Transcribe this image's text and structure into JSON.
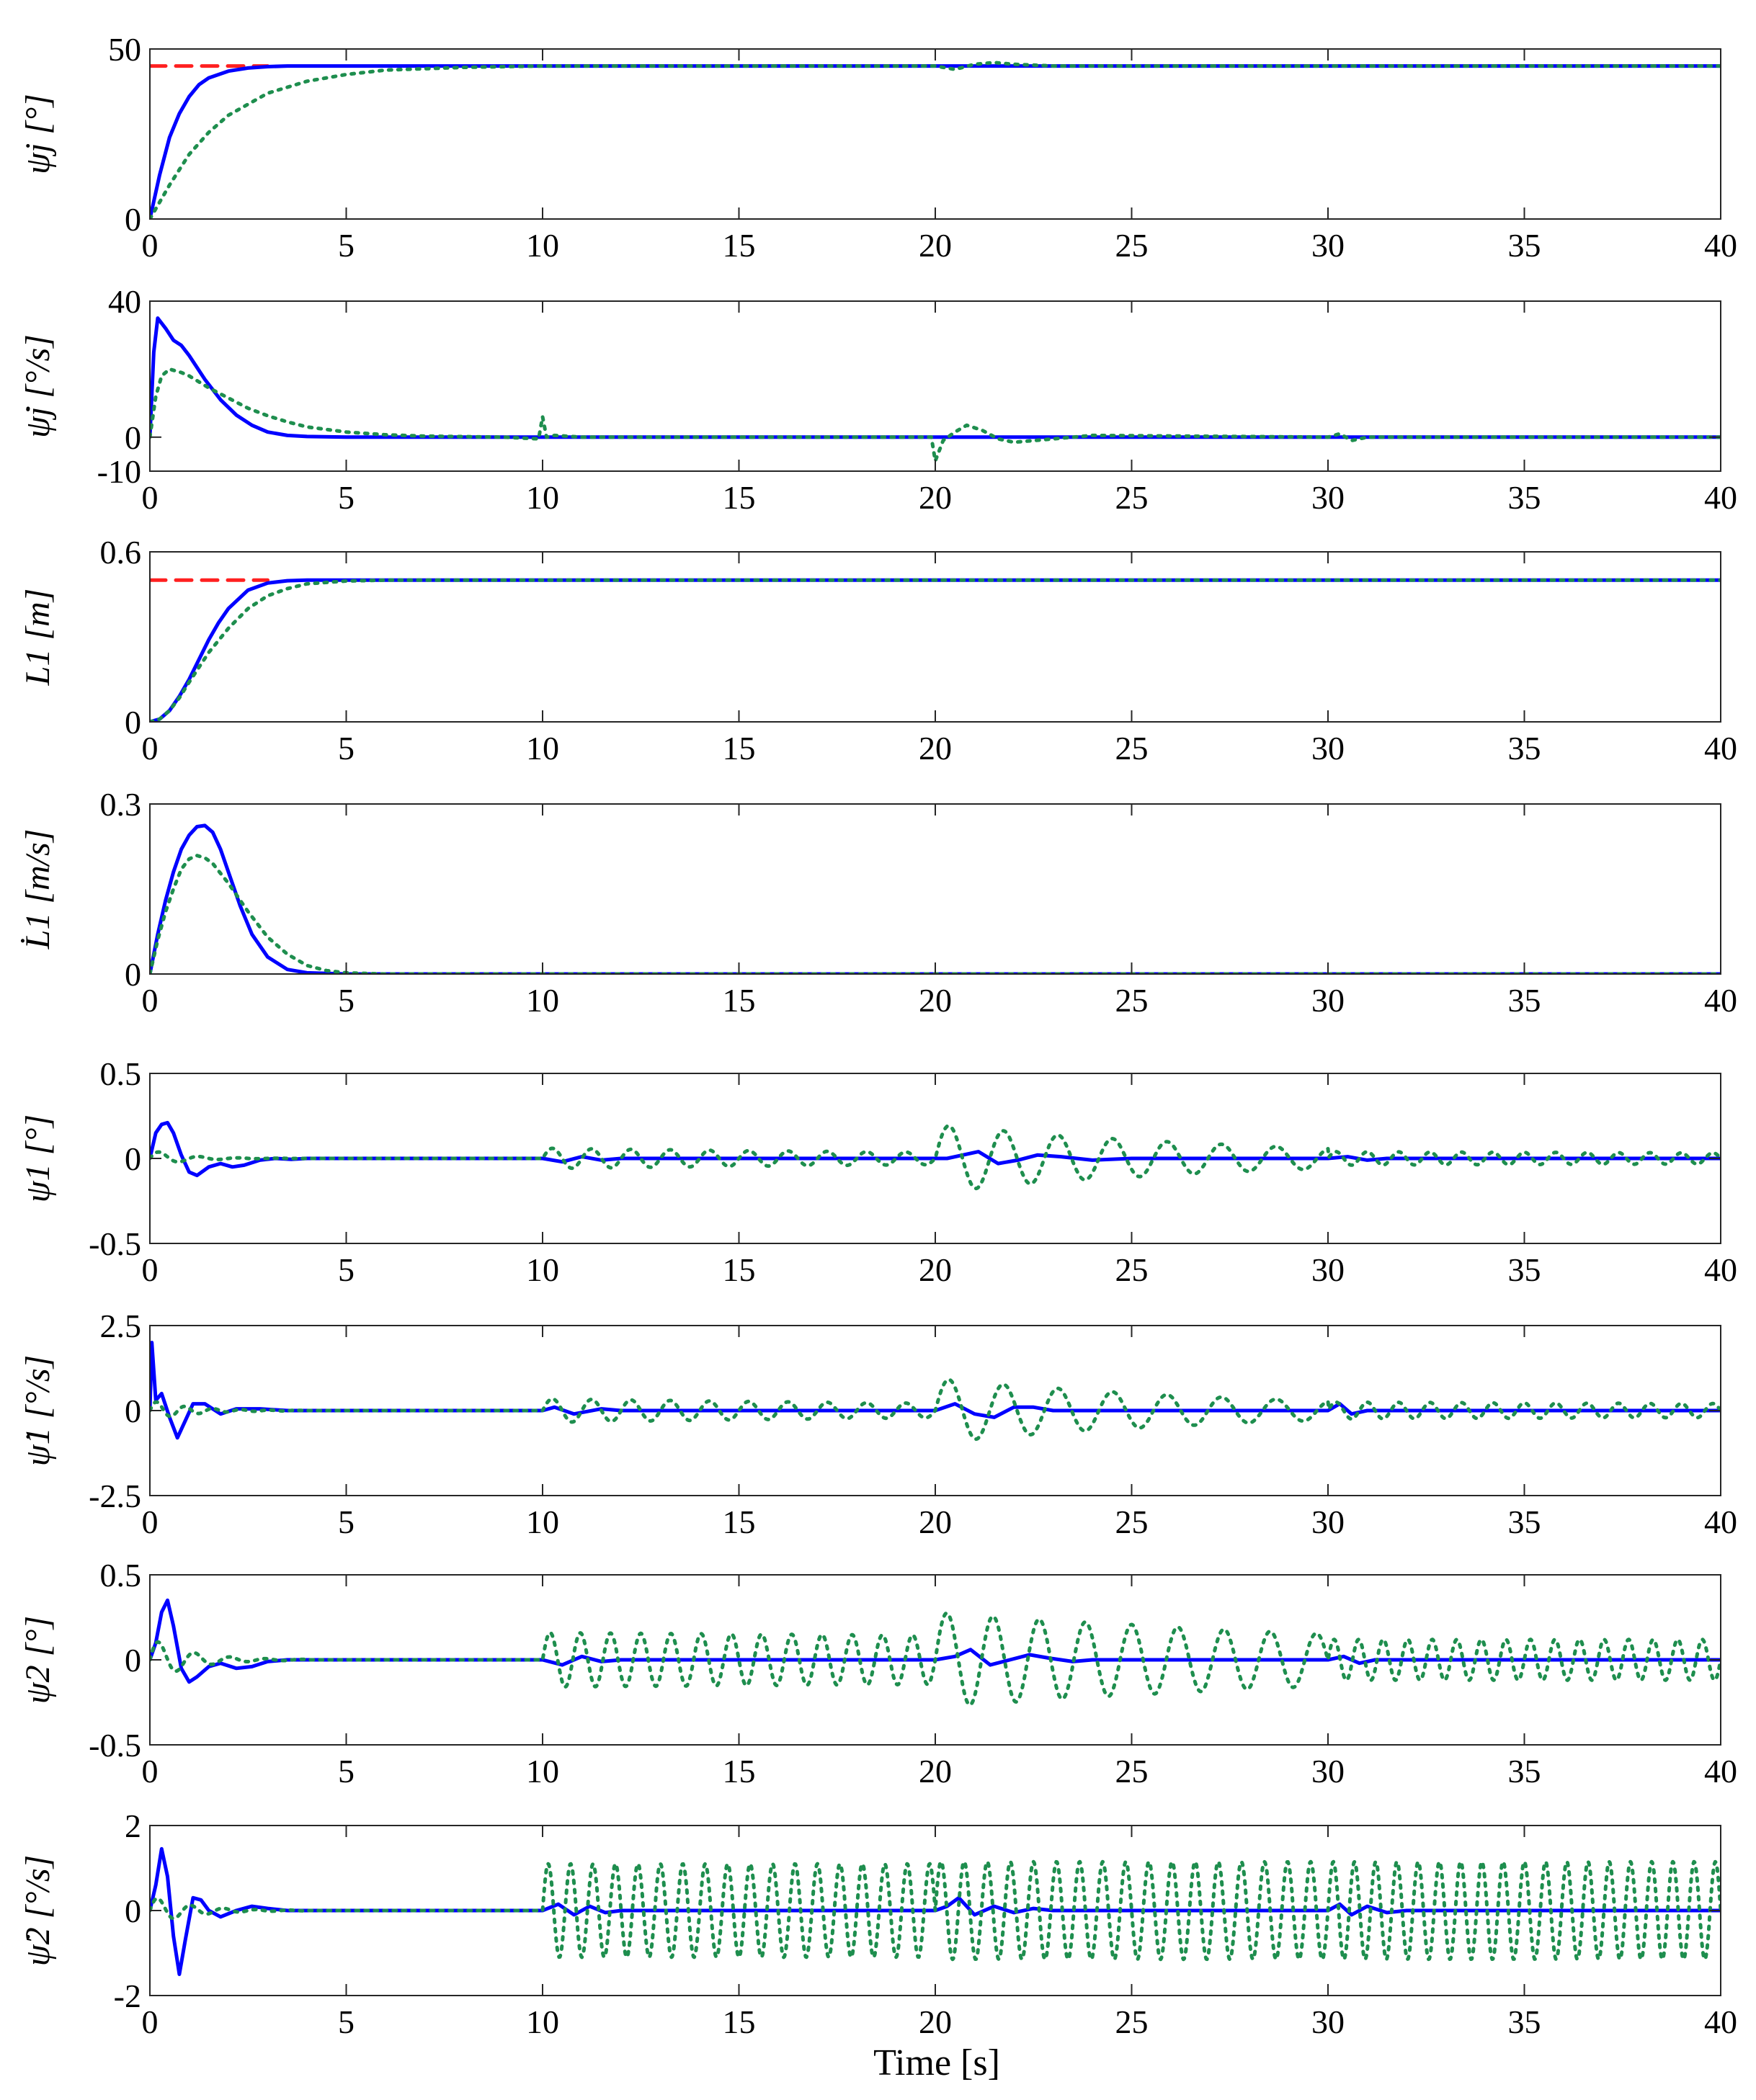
{
  "figure": {
    "xlabel": "Time [s]",
    "xlim": [
      0,
      40
    ],
    "xticks": [
      0,
      5,
      10,
      15,
      20,
      25,
      30,
      35,
      40
    ],
    "colors": {
      "blue_solid": "#0000ff",
      "green_dotted": "#1e8e4e",
      "red_dashed": "#ff2020"
    }
  },
  "chart_data": [
    {
      "type": "line",
      "ylabel": "ψj [°]",
      "ylim": [
        0,
        50
      ],
      "yticks": [
        0,
        50
      ],
      "ytick_labels": [
        "0",
        "50"
      ],
      "series": [
        {
          "style": "dashed-red",
          "x": [
            0,
            3
          ],
          "y": [
            45,
            45
          ]
        },
        {
          "style": "solid-blue",
          "x": [
            0,
            0.25,
            0.5,
            0.75,
            1,
            1.25,
            1.5,
            2,
            2.5,
            3,
            3.5,
            4,
            10,
            20,
            30,
            40
          ],
          "y": [
            0,
            13,
            24,
            31,
            36,
            39.5,
            41.5,
            43.5,
            44.4,
            44.8,
            45,
            45,
            45,
            45,
            45,
            45
          ]
        },
        {
          "style": "dotted-green",
          "x": [
            0,
            0.5,
            1,
            1.5,
            2,
            3,
            4,
            5,
            6,
            8,
            10,
            20,
            20.5,
            21,
            21.5,
            22,
            23,
            30,
            40
          ],
          "y": [
            0,
            10,
            19,
            25.5,
            30.5,
            37,
            40.5,
            42.5,
            43.8,
            44.6,
            45,
            45,
            44,
            45.5,
            46,
            45.5,
            45,
            45,
            45
          ]
        }
      ]
    },
    {
      "type": "line",
      "ylabel": "ψ̇j [°/s]",
      "ylim": [
        -10,
        40
      ],
      "yticks": [
        -10,
        0,
        40
      ],
      "ytick_labels": [
        "-10",
        "0",
        "40"
      ],
      "series": [
        {
          "style": "solid-blue",
          "x": [
            0,
            0.1,
            0.2,
            0.4,
            0.6,
            0.8,
            1,
            1.4,
            1.8,
            2.2,
            2.6,
            3,
            3.5,
            4,
            5,
            10,
            20,
            30,
            40
          ],
          "y": [
            0,
            25,
            35,
            32,
            28.5,
            27,
            24,
            17,
            11,
            6.5,
            3.5,
            1.5,
            0.5,
            0.2,
            0,
            0,
            0,
            0,
            0
          ]
        },
        {
          "style": "dotted-green",
          "x": [
            0,
            0.15,
            0.3,
            0.5,
            0.8,
            1,
            1.5,
            2,
            2.5,
            3,
            3.5,
            4,
            5,
            6,
            7,
            9,
            9.9,
            10,
            10.1,
            10.3,
            11,
            19.9,
            20,
            20.2,
            20.5,
            20.8,
            21.2,
            21.6,
            22,
            23,
            24,
            30,
            30.3,
            30.6,
            31,
            40
          ],
          "y": [
            0,
            12,
            18,
            20,
            19,
            18,
            14.5,
            11.5,
            8.5,
            6.3,
            4.5,
            3,
            1.5,
            0.7,
            0.3,
            0,
            -0.5,
            6,
            0,
            0.5,
            0,
            0,
            -7,
            -1,
            1.5,
            3.5,
            2,
            -0.5,
            -1.5,
            -0.5,
            0.5,
            0,
            1,
            -1,
            0,
            0
          ]
        }
      ]
    },
    {
      "type": "line",
      "ylabel": "L1 [m]",
      "ylim": [
        0,
        0.6
      ],
      "yticks": [
        0,
        0.6
      ],
      "ytick_labels": [
        "0",
        "0.6"
      ],
      "series": [
        {
          "style": "dashed-red",
          "x": [
            0,
            3
          ],
          "y": [
            0.5,
            0.5
          ]
        },
        {
          "style": "solid-blue",
          "x": [
            0,
            0.25,
            0.5,
            0.75,
            1,
            1.25,
            1.5,
            1.75,
            2,
            2.5,
            3,
            3.5,
            4,
            5,
            40
          ],
          "y": [
            0,
            0.01,
            0.04,
            0.09,
            0.15,
            0.22,
            0.29,
            0.35,
            0.4,
            0.465,
            0.49,
            0.498,
            0.5,
            0.5,
            0.5
          ]
        },
        {
          "style": "dotted-green",
          "x": [
            0,
            0.25,
            0.5,
            0.75,
            1,
            1.5,
            2,
            2.5,
            3,
            3.5,
            4,
            5,
            6,
            40
          ],
          "y": [
            0,
            0.01,
            0.04,
            0.085,
            0.14,
            0.245,
            0.33,
            0.4,
            0.445,
            0.47,
            0.487,
            0.497,
            0.5,
            0.5
          ]
        }
      ]
    },
    {
      "type": "line",
      "ylabel": "L̇1 [m/s]",
      "ylim": [
        0,
        0.3
      ],
      "yticks": [
        0,
        0.3
      ],
      "ytick_labels": [
        "0",
        "0.3"
      ],
      "series": [
        {
          "style": "solid-blue",
          "x": [
            0,
            0.2,
            0.4,
            0.6,
            0.8,
            1,
            1.2,
            1.4,
            1.6,
            1.8,
            2,
            2.3,
            2.6,
            3,
            3.5,
            4,
            5,
            40
          ],
          "y": [
            0,
            0.07,
            0.13,
            0.18,
            0.22,
            0.245,
            0.26,
            0.262,
            0.25,
            0.22,
            0.18,
            0.12,
            0.07,
            0.03,
            0.008,
            0.002,
            0,
            0
          ]
        },
        {
          "style": "dotted-green",
          "x": [
            0,
            0.2,
            0.4,
            0.6,
            0.8,
            1,
            1.2,
            1.4,
            1.6,
            2,
            2.5,
            3,
            3.5,
            4,
            4.5,
            5,
            6,
            40
          ],
          "y": [
            0,
            0.06,
            0.11,
            0.15,
            0.185,
            0.203,
            0.209,
            0.205,
            0.195,
            0.16,
            0.11,
            0.065,
            0.035,
            0.015,
            0.006,
            0.002,
            0,
            0
          ]
        }
      ]
    },
    {
      "type": "line",
      "ylabel": "ψ1 [°]",
      "ylim": [
        -0.5,
        0.5
      ],
      "yticks": [
        -0.5,
        0,
        0.5
      ],
      "ytick_labels": [
        "-0.5",
        "0",
        "0.5"
      ],
      "series": [
        {
          "style": "solid-blue",
          "x": [
            0,
            0.15,
            0.3,
            0.45,
            0.6,
            0.8,
            1,
            1.2,
            1.5,
            1.8,
            2.1,
            2.4,
            2.8,
            3.2,
            3.6,
            4,
            10,
            10.5,
            11,
            11.5,
            12,
            19.8,
            20.3,
            20.7,
            21.1,
            21.6,
            22.1,
            22.6,
            23.2,
            24,
            25,
            30,
            30.5,
            31,
            31.5,
            32,
            40
          ],
          "y": [
            0,
            0.15,
            0.2,
            0.21,
            0.15,
            0.02,
            -0.08,
            -0.1,
            -0.05,
            -0.03,
            -0.05,
            -0.04,
            -0.01,
            0,
            -0.005,
            0,
            0,
            -0.02,
            0.01,
            -0.01,
            0,
            0,
            0,
            0.02,
            0.04,
            -0.03,
            -0.01,
            0.02,
            0.01,
            -0.01,
            0,
            0,
            0.01,
            -0.01,
            0,
            0,
            0
          ]
        },
        {
          "style": "dotted-green",
          "osc": [
            {
              "t0": 0,
              "t1": 4,
              "amp": 0.05,
              "freq": 1.0,
              "decay": 1.2
            },
            {
              "t0": 10,
              "t1": 20,
              "amp": 0.06,
              "freq": 1.0,
              "decay": 0.05
            },
            {
              "t0": 20,
              "t1": 30,
              "amp": 0.2,
              "freq": 0.72,
              "decay": 0.12
            },
            {
              "t0": 30,
              "t1": 40,
              "amp": 0.04,
              "freq": 1.25,
              "decay": 0.02
            }
          ]
        }
      ]
    },
    {
      "type": "line",
      "ylabel": "ψ̇1 [°/s]",
      "ylim": [
        -2.5,
        2.5
      ],
      "yticks": [
        -2.5,
        0,
        2.5
      ],
      "ytick_labels": [
        "-2.5",
        "0",
        "2.5"
      ],
      "series": [
        {
          "style": "solid-blue",
          "x": [
            0,
            0.05,
            0.15,
            0.3,
            0.5,
            0.7,
            0.9,
            1.1,
            1.4,
            1.8,
            2.2,
            2.8,
            3.5,
            10,
            10.3,
            10.8,
            11.5,
            12,
            20,
            20.5,
            21,
            21.5,
            22,
            22.5,
            23,
            30,
            30.3,
            30.6,
            31,
            40
          ],
          "y": [
            0,
            2.0,
            0.3,
            0.5,
            -0.2,
            -0.8,
            -0.3,
            0.2,
            0.2,
            -0.1,
            0.05,
            0.05,
            0,
            0,
            0.1,
            -0.1,
            0.05,
            0,
            0,
            0.2,
            -0.1,
            -0.2,
            0.1,
            0.1,
            0,
            0,
            0.2,
            -0.1,
            0,
            0
          ]
        },
        {
          "style": "dotted-green",
          "osc": [
            {
              "t0": 0,
              "t1": 4,
              "amp": 0.3,
              "freq": 1.4,
              "decay": 1.0
            },
            {
              "t0": 10,
              "t1": 20,
              "amp": 0.35,
              "freq": 1.0,
              "decay": 0.05
            },
            {
              "t0": 20,
              "t1": 30,
              "amp": 0.95,
              "freq": 0.72,
              "decay": 0.12
            },
            {
              "t0": 30,
              "t1": 40,
              "amp": 0.25,
              "freq": 1.25,
              "decay": 0.02
            }
          ]
        }
      ]
    },
    {
      "type": "line",
      "ylabel": "ψ2 [°]",
      "ylim": [
        -0.5,
        0.5
      ],
      "yticks": [
        -0.5,
        0,
        0.5
      ],
      "ytick_labels": [
        "-0.5",
        "0",
        "0.5"
      ],
      "series": [
        {
          "style": "solid-blue",
          "x": [
            0,
            0.15,
            0.3,
            0.45,
            0.6,
            0.8,
            1,
            1.2,
            1.5,
            1.8,
            2.2,
            2.6,
            3,
            3.5,
            4,
            10,
            10.5,
            11,
            11.5,
            12,
            20,
            20.5,
            20.9,
            21.4,
            21.9,
            22.4,
            22.9,
            23.5,
            24,
            30,
            30.4,
            30.8,
            31.2,
            40
          ],
          "y": [
            0,
            0.1,
            0.28,
            0.35,
            0.2,
            -0.05,
            -0.13,
            -0.1,
            -0.04,
            -0.02,
            -0.05,
            -0.04,
            -0.01,
            0,
            0,
            0,
            -0.03,
            0.02,
            -0.01,
            0,
            0,
            0.02,
            0.06,
            -0.03,
            0,
            0.03,
            0.01,
            -0.01,
            0,
            0,
            0.02,
            -0.02,
            0,
            0
          ]
        },
        {
          "style": "dotted-green",
          "osc": [
            {
              "t0": 0,
              "t1": 4,
              "amp": 0.13,
              "freq": 1.1,
              "decay": 1.0
            },
            {
              "t0": 10,
              "t1": 20,
              "amp": 0.16,
              "freq": 1.3,
              "decay": 0.01
            },
            {
              "t0": 20,
              "t1": 30,
              "amp": 0.28,
              "freq": 0.85,
              "decay": 0.06
            },
            {
              "t0": 30,
              "t1": 40,
              "amp": 0.12,
              "freq": 1.6,
              "decay": 0
            }
          ]
        }
      ]
    },
    {
      "type": "line",
      "ylabel": "ψ̇2 [°/s]",
      "ylim": [
        -2,
        2
      ],
      "yticks": [
        -2,
        0,
        2
      ],
      "ytick_labels": [
        "-2",
        "0",
        "2"
      ],
      "series": [
        {
          "style": "solid-blue",
          "x": [
            0,
            0.15,
            0.3,
            0.45,
            0.6,
            0.75,
            0.9,
            1.1,
            1.3,
            1.5,
            1.8,
            2.2,
            2.6,
            3,
            3.5,
            10,
            10.4,
            10.8,
            11.2,
            11.6,
            12,
            20,
            20.3,
            20.6,
            21,
            21.5,
            22,
            22.5,
            23,
            30,
            30.3,
            30.6,
            31,
            31.5,
            32,
            40
          ],
          "y": [
            0,
            0.6,
            1.45,
            0.8,
            -0.6,
            -1.5,
            -0.7,
            0.3,
            0.25,
            0,
            -0.15,
            0,
            0.1,
            0.05,
            0,
            0,
            0.15,
            -0.1,
            0.1,
            -0.05,
            0,
            0,
            0.1,
            0.3,
            -0.1,
            0.1,
            -0.05,
            0.05,
            0,
            0,
            0.15,
            -0.1,
            0.1,
            -0.05,
            0,
            0
          ]
        },
        {
          "style": "dotted-green",
          "osc": [
            {
              "t0": 0,
              "t1": 4,
              "amp": 0.35,
              "freq": 1.2,
              "decay": 1.0
            },
            {
              "t0": 10,
              "t1": 20,
              "amp": 1.1,
              "freq": 1.75,
              "decay": 0
            },
            {
              "t0": 20,
              "t1": 30,
              "amp": 1.15,
              "freq": 1.7,
              "decay": 0
            },
            {
              "t0": 30,
              "t1": 40,
              "amp": 1.15,
              "freq": 1.85,
              "decay": 0
            }
          ]
        }
      ]
    }
  ]
}
